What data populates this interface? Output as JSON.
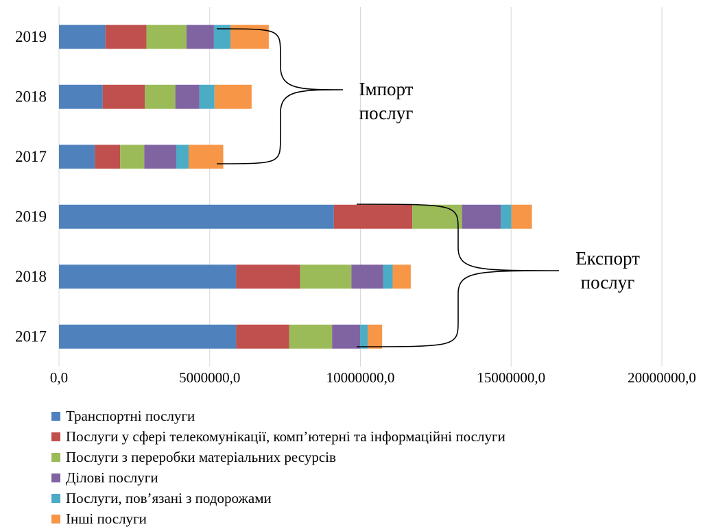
{
  "chart_data": {
    "type": "bar",
    "orientation": "horizontal",
    "stacked": true,
    "categories": [
      "2017",
      "2018",
      "2019",
      "2017",
      "2018",
      "2019"
    ],
    "series": [
      {
        "name": "Транспортні послуги",
        "color": "#4f81bd",
        "values": [
          5880000,
          5880000,
          9120000,
          1190000,
          1450000,
          1540000
        ]
      },
      {
        "name": "Послуги у сфері телекомунікації, комп’ютерні та інформаційні послуги",
        "color": "#c0504d",
        "values": [
          1760000,
          2120000,
          2600000,
          840000,
          1400000,
          1360000
        ]
      },
      {
        "name": "Послуги з переробки матеріальних ресурсів",
        "color": "#9bbb59",
        "values": [
          1420000,
          1700000,
          1650000,
          800000,
          1010000,
          1330000
        ]
      },
      {
        "name": "Ділові послуги",
        "color": "#8064a2",
        "values": [
          930000,
          1050000,
          1290000,
          1060000,
          800000,
          910000
        ]
      },
      {
        "name": "Послуги, пов’язані з подорожами",
        "color": "#4bacc6",
        "values": [
          250000,
          320000,
          350000,
          410000,
          500000,
          550000
        ]
      },
      {
        "name": "Інші послуги",
        "color": "#f79646",
        "values": [
          480000,
          600000,
          680000,
          1150000,
          1230000,
          1270000
        ]
      }
    ],
    "xlim": [
      0,
      20000000
    ],
    "xticks": [
      "0,0",
      "5000000,0",
      "10000000,0",
      "15000000,0",
      "20000000,0"
    ],
    "grid": "vertical",
    "legend_position": "bottom",
    "annotations": [
      {
        "lines": [
          "Імпорт",
          "послуг"
        ],
        "target_rows": [
          3,
          4,
          5
        ]
      },
      {
        "lines": [
          "Експорт",
          "послуг"
        ],
        "target_rows": [
          0,
          1,
          2
        ]
      }
    ]
  }
}
